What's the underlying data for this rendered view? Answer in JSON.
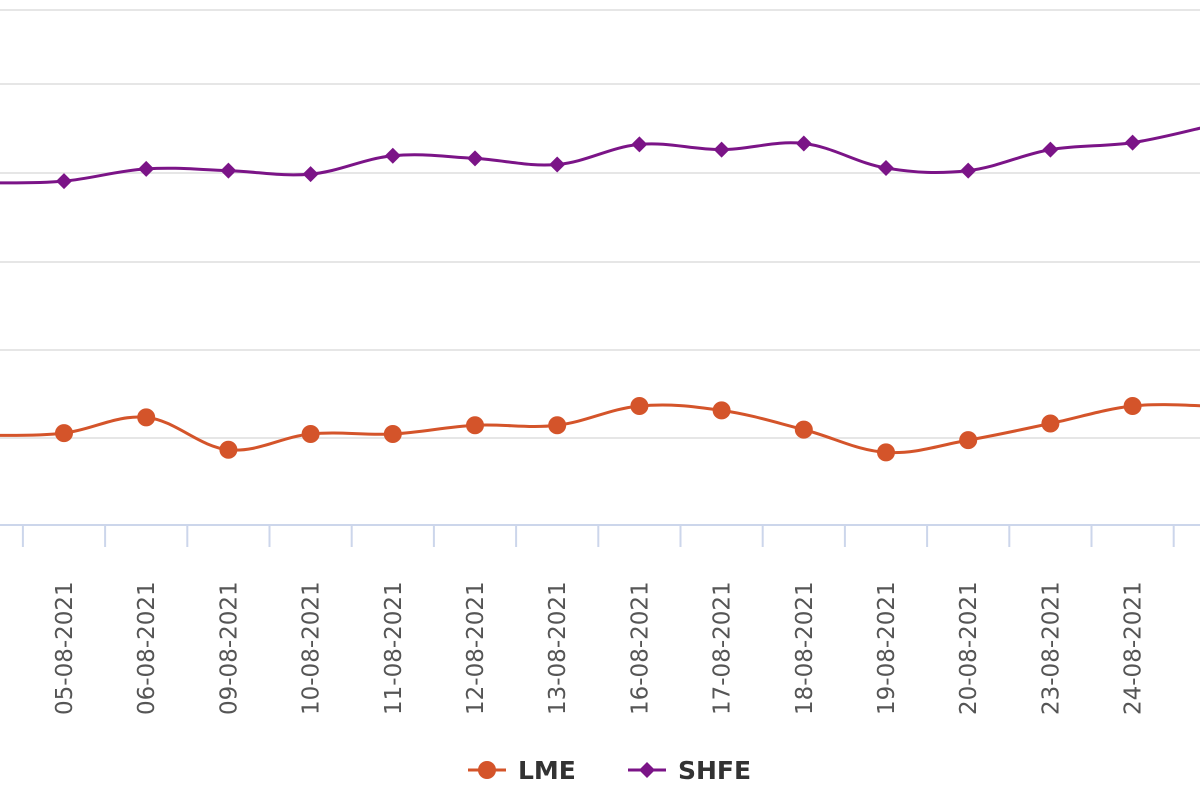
{
  "chart_data": {
    "type": "line",
    "title": "",
    "xlabel": "",
    "ylabel": "",
    "categories": [
      "05-08-2021",
      "06-08-2021",
      "09-08-2021",
      "10-08-2021",
      "11-08-2021",
      "12-08-2021",
      "13-08-2021",
      "16-08-2021",
      "17-08-2021",
      "18-08-2021",
      "19-08-2021",
      "20-08-2021",
      "23-08-2021",
      "24-08-2021"
    ],
    "series": [
      {
        "name": "LME",
        "color": "#d4542a",
        "marker": "circle",
        "values": [
          4.55,
          4.73,
          4.36,
          4.54,
          4.54,
          4.64,
          4.64,
          4.86,
          4.81,
          4.59,
          4.33,
          4.47,
          4.66,
          4.86
        ]
      },
      {
        "name": "SHFE",
        "color": "#7b1487",
        "marker": "diamond",
        "values": [
          7.43,
          7.57,
          7.55,
          7.51,
          7.72,
          7.69,
          7.62,
          7.85,
          7.79,
          7.86,
          7.58,
          7.55,
          7.79,
          7.87
        ]
      }
    ],
    "grid": true,
    "legend_position": "bottom-center"
  }
}
